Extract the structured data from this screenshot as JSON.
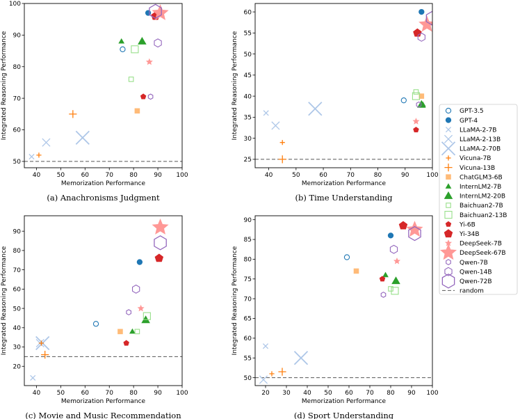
{
  "series": [
    {
      "key": "gpt35",
      "name": "GPT-3.5",
      "color": "#1f77b4",
      "marker": "circle",
      "size": "small",
      "filled": false
    },
    {
      "key": "gpt4",
      "name": "GPT-4",
      "color": "#1f77b4",
      "marker": "circle",
      "size": "small",
      "filled": true
    },
    {
      "key": "llama7",
      "name": "LLaMA-2-7B",
      "color": "#aec7e8",
      "marker": "x",
      "size": "small",
      "filled": true
    },
    {
      "key": "llama13",
      "name": "LLaMA-2-13B",
      "color": "#aec7e8",
      "marker": "x",
      "size": "medium",
      "filled": true
    },
    {
      "key": "llama70",
      "name": "LLaMA-2-70B",
      "color": "#aec7e8",
      "marker": "x",
      "size": "large",
      "filled": true
    },
    {
      "key": "vicuna7",
      "name": "Vicuna-7B",
      "color": "#ff7f0e",
      "marker": "plus",
      "size": "small",
      "filled": true
    },
    {
      "key": "vicuna13",
      "name": "Vicuna-13B",
      "color": "#ff7f0e",
      "marker": "plus",
      "size": "medium",
      "filled": true
    },
    {
      "key": "chatglm3",
      "name": "ChatGLM3-6B",
      "color": "#ffbb78",
      "marker": "square",
      "size": "small",
      "filled": true
    },
    {
      "key": "intern7",
      "name": "InternLM2-7B",
      "color": "#2ca02c",
      "marker": "triangle",
      "size": "small",
      "filled": true
    },
    {
      "key": "intern20",
      "name": "InternLM2-20B",
      "color": "#2ca02c",
      "marker": "triangle",
      "size": "medium",
      "filled": true
    },
    {
      "key": "baichuan7",
      "name": "Baichuan2-7B",
      "color": "#98df8a",
      "marker": "square",
      "size": "small",
      "filled": false
    },
    {
      "key": "baichuan13",
      "name": "Baichuan2-13B",
      "color": "#98df8a",
      "marker": "square",
      "size": "medium",
      "filled": false
    },
    {
      "key": "yi6",
      "name": "Yi-6B",
      "color": "#d62728",
      "marker": "pentagon",
      "size": "small",
      "filled": true
    },
    {
      "key": "yi34",
      "name": "Yi-34B",
      "color": "#d62728",
      "marker": "pentagon",
      "size": "medium",
      "filled": true
    },
    {
      "key": "ds7",
      "name": "DeepSeek-7B",
      "color": "#ff9896",
      "marker": "star",
      "size": "small",
      "filled": true
    },
    {
      "key": "ds67",
      "name": "DeepSeek-67B",
      "color": "#ff9896",
      "marker": "star",
      "size": "large",
      "filled": true
    },
    {
      "key": "qwen7",
      "name": "Qwen-7B",
      "color": "#9467bd",
      "marker": "hexagon",
      "size": "small",
      "filled": false
    },
    {
      "key": "qwen14",
      "name": "Qwen-14B",
      "color": "#9467bd",
      "marker": "hexagon",
      "size": "medium",
      "filled": false
    },
    {
      "key": "qwen72",
      "name": "Qwen-72B",
      "color": "#9467bd",
      "marker": "hexagon",
      "size": "large",
      "filled": false
    }
  ],
  "random_label": "random",
  "chart_data": [
    {
      "type": "scatter",
      "caption": "(a) Anachronisms Judgment",
      "xlabel": "Memorization Performance",
      "ylabel": "Integrated Reasoning Performance",
      "xlim": [
        35,
        100
      ],
      "ylim": [
        48,
        100
      ],
      "xticks": [
        40,
        50,
        60,
        70,
        80,
        90,
        100
      ],
      "yticks": [
        50,
        60,
        70,
        80,
        90,
        100
      ],
      "random": 50,
      "points": {
        "gpt35": [
          75.5,
          85.5
        ],
        "gpt4": [
          86,
          97
        ],
        "llama7": [
          38,
          51.5
        ],
        "llama13": [
          44,
          56
        ],
        "llama70": [
          59,
          57.5
        ],
        "vicuna7": [
          41,
          52
        ],
        "vicuna13": [
          55,
          65
        ],
        "chatglm3": [
          81.5,
          66
        ],
        "intern7": [
          75,
          88
        ],
        "intern20": [
          83.5,
          88
        ],
        "baichuan7": [
          79,
          76
        ],
        "baichuan13": [
          80.5,
          85.5
        ],
        "yi6": [
          84,
          70.5
        ],
        "yi34": [
          89,
          96
        ],
        "ds7": [
          86.5,
          81.5
        ],
        "ds67": [
          91,
          97
        ],
        "qwen7": [
          87,
          70.5
        ],
        "qwen14": [
          90,
          87.5
        ],
        "qwen72": [
          89,
          97.5
        ]
      }
    },
    {
      "type": "scatter",
      "caption": "(b) Time Understanding",
      "xlabel": "Memorization Performance",
      "ylabel": "Integrated Reasoning Performance",
      "xlim": [
        35,
        100
      ],
      "ylim": [
        23,
        62
      ],
      "xticks": [
        40,
        50,
        60,
        70,
        80,
        90,
        100
      ],
      "yticks": [
        25,
        30,
        35,
        40,
        45,
        50,
        55,
        60
      ],
      "random": 25,
      "points": {
        "gpt35": [
          89.5,
          39
        ],
        "gpt4": [
          96,
          60
        ],
        "llama7": [
          39,
          36
        ],
        "llama13": [
          42.5,
          33
        ],
        "llama70": [
          57,
          37
        ],
        "vicuna7": [
          45,
          29
        ],
        "vicuna13": [
          45,
          25
        ],
        "chatglm3": [
          96,
          40
        ],
        "intern7": [
          96.5,
          38
        ],
        "intern20": [
          96,
          38
        ],
        "baichuan7": [
          94,
          41
        ],
        "baichuan13": [
          94,
          40
        ],
        "yi6": [
          94,
          32
        ],
        "yi34": [
          94.5,
          55
        ],
        "ds7": [
          94,
          34
        ],
        "ds67": [
          98,
          57
        ],
        "qwen7": [
          95,
          38
        ],
        "qwen14": [
          96,
          54
        ],
        "qwen72": [
          100,
          58.5
        ]
      }
    },
    {
      "type": "scatter",
      "caption": "(c) Movie and Music Recommendation",
      "xlabel": "Memorization Performance",
      "ylabel": "Integrated Reasoning Performance",
      "xlim": [
        35,
        100
      ],
      "ylim": [
        10,
        98
      ],
      "xticks": [
        40,
        50,
        60,
        70,
        80,
        90,
        100
      ],
      "yticks": [
        20,
        30,
        40,
        50,
        60,
        70,
        80,
        90
      ],
      "random": 25,
      "points": {
        "gpt35": [
          64.5,
          42
        ],
        "gpt4": [
          82.5,
          74
        ],
        "llama7": [
          38.5,
          14
        ],
        "llama13": [
          41.5,
          32
        ],
        "llama70": [
          42.5,
          32
        ],
        "vicuna7": [
          42,
          32
        ],
        "vicuna13": [
          43.5,
          26
        ],
        "chatglm3": [
          74.5,
          38
        ],
        "intern7": [
          79.5,
          38
        ],
        "intern20": [
          85,
          44
        ],
        "baichuan7": [
          81.5,
          38
        ],
        "baichuan13": [
          85.5,
          46
        ],
        "yi6": [
          77,
          32
        ],
        "yi34": [
          90.5,
          76
        ],
        "ds7": [
          83,
          50
        ],
        "ds67": [
          91,
          92
        ],
        "qwen7": [
          78,
          48
        ],
        "qwen14": [
          81,
          60
        ],
        "qwen72": [
          91,
          84
        ]
      }
    },
    {
      "type": "scatter",
      "caption": "(d) Sport Understanding",
      "xlabel": "Memorization Performance",
      "ylabel": "Integrated Reasoning Performance",
      "xlim": [
        15,
        100
      ],
      "ylim": [
        48,
        91
      ],
      "xticks": [
        20,
        30,
        40,
        50,
        60,
        70,
        80,
        90,
        100
      ],
      "yticks": [
        50,
        55,
        60,
        65,
        70,
        75,
        80,
        85,
        90
      ],
      "random": 50,
      "points": {
        "gpt35": [
          59,
          80.5
        ],
        "gpt4": [
          80,
          86
        ],
        "llama7": [
          20,
          58
        ],
        "llama13": [
          19,
          49.5
        ],
        "llama70": [
          37,
          55
        ],
        "vicuna7": [
          23,
          51
        ],
        "vicuna13": [
          28,
          51.5
        ],
        "chatglm3": [
          63.5,
          77
        ],
        "intern7": [
          77.5,
          76
        ],
        "intern20": [
          82.5,
          74.5
        ],
        "baichuan7": [
          80,
          72.5
        ],
        "baichuan13": [
          82,
          72
        ],
        "yi6": [
          76,
          75
        ],
        "yi34": [
          86,
          88.5
        ],
        "ds7": [
          83,
          79.5
        ],
        "ds67": [
          91.5,
          87.5
        ],
        "qwen7": [
          76.5,
          71
        ],
        "qwen14": [
          81.5,
          82.5
        ],
        "qwen72": [
          91.5,
          86.5
        ]
      }
    }
  ]
}
